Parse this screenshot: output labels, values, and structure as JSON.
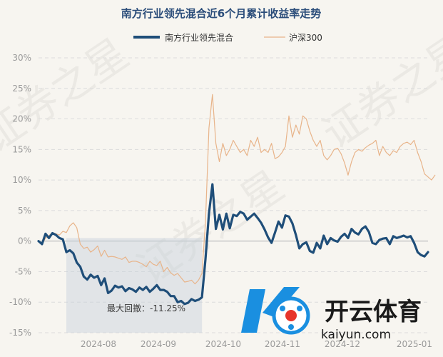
{
  "chart_data": {
    "type": "line",
    "title": "南方行业领先混合近6个月累计收益率走势",
    "y_unit": "%",
    "ylim": [
      -15,
      30
    ],
    "y_ticks": [
      30,
      25,
      20,
      15,
      10,
      5,
      0,
      -5,
      -10,
      -15
    ],
    "y_tick_labels": [
      "30%",
      "25%",
      "20%",
      "15%",
      "10%",
      "5%",
      "0%",
      "-5%",
      "-10%",
      "-15%"
    ],
    "x_ticks": [
      "2024-08",
      "2024-09",
      "2024-10",
      "2024-11",
      "2024-12",
      "2025-01"
    ],
    "grid": true,
    "legend_position": "top",
    "series": [
      {
        "name": "南方行业领先混合",
        "color": "#1f4e79",
        "values": [
          0,
          -0.5,
          1.2,
          0.5,
          1.3,
          1.0,
          0.5,
          0.3,
          -1.8,
          -1.5,
          -2.0,
          -3.5,
          -4.2,
          -5.8,
          -6.3,
          -5.5,
          -6.0,
          -5.7,
          -7.2,
          -6.1,
          -8.5,
          -8.1,
          -7.3,
          -7.6,
          -7.4,
          -8.2,
          -7.7,
          -7.9,
          -8.3,
          -7.6,
          -8.0,
          -7.5,
          -8.3,
          -7.8,
          -7.2,
          -8.0,
          -8.0,
          -8.3,
          -9.0,
          -9.0,
          -10.0,
          -9.8,
          -10.3,
          -10.1,
          -9.5,
          -9.8,
          -9.6,
          -9.2,
          -3.0,
          4.5,
          9.3,
          2.0,
          4.3,
          1.9,
          4.5,
          2.1,
          4.3,
          4.1,
          4.8,
          4.5,
          3.5,
          4.0,
          4.5,
          3.8,
          3.0,
          1.9,
          0.6,
          -0.3,
          1.4,
          3.2,
          2.2,
          4.2,
          4.0,
          2.9,
          1.0,
          -1.2,
          -0.5,
          -0.2,
          -1.6,
          -1.9,
          -0.3,
          -1.2,
          0.9,
          -0.5,
          0.5,
          0.1,
          -0.1,
          0.7,
          1.2,
          0.5,
          2.0,
          1.4,
          1.1,
          2.0,
          2.4,
          1.5,
          -0.3,
          -0.5,
          0.2,
          0.4,
          0.5,
          -0.5,
          0.8,
          0.5,
          0.7,
          0.9,
          0.6,
          0.8,
          -0.3,
          -1.8,
          -2.3,
          -2.5,
          -1.8
        ],
        "line_width": "thick"
      },
      {
        "name": "沪深300",
        "color": "#e8b48a",
        "values": [
          0,
          -0.5,
          0.5,
          0.9,
          1.4,
          1.2,
          1.0,
          1.6,
          1.4,
          2.5,
          3.0,
          2.2,
          -0.5,
          -1.2,
          -1.0,
          -1.8,
          -1.4,
          -0.8,
          -2.5,
          -1.5,
          -2.6,
          -2.5,
          -2.6,
          -2.8,
          -3.0,
          -2.6,
          -3.5,
          -3.3,
          -3.3,
          -3.5,
          -3.8,
          -4.2,
          -3.3,
          -3.8,
          -4.0,
          -3.3,
          -5.0,
          -4.3,
          -5.2,
          -5.6,
          -5.3,
          -6.0,
          -6.7,
          -6.6,
          -6.4,
          -7.0,
          -6.4,
          -5.3,
          3.0,
          18.5,
          24.0,
          16.0,
          13.0,
          16.0,
          14.0,
          15.0,
          16.5,
          15.5,
          14.5,
          15.0,
          14.0,
          16.5,
          15.5,
          17.0,
          14.5,
          15.0,
          14.5,
          16.0,
          13.5,
          13.8,
          14.5,
          15.5,
          20.5,
          17.0,
          19.0,
          17.5,
          20.5,
          20.0,
          18.0,
          16.5,
          15.5,
          16.5,
          14.0,
          13.3,
          14.0,
          15.0,
          15.2,
          14.3,
          12.8,
          10.8,
          13.0,
          14.5,
          15.0,
          14.7,
          15.3,
          15.7,
          16.0,
          16.5,
          14.0,
          15.5,
          14.5,
          14.0,
          14.8,
          14.5,
          15.5,
          16.0,
          16.2,
          15.8,
          16.5,
          14.5,
          13.0,
          11.0,
          10.5,
          10.0,
          10.8
        ],
        "line_width": "thin"
      }
    ],
    "annotation": {
      "label": "最大回撤：-11.25%",
      "region_start_index": 8,
      "region_end_index": 43,
      "region_color": "#c5d0dc"
    }
  },
  "watermark": {
    "text": "证券之星"
  },
  "logo": {
    "name": "开云体育",
    "url_text": "kaiyun.com",
    "primary_color": "#1a8fe0",
    "accent_color": "#e7352b"
  },
  "colors": {
    "background": "#f7f5f0",
    "grid": "#dcdcdc",
    "zero_line": "#c8c8c8"
  }
}
